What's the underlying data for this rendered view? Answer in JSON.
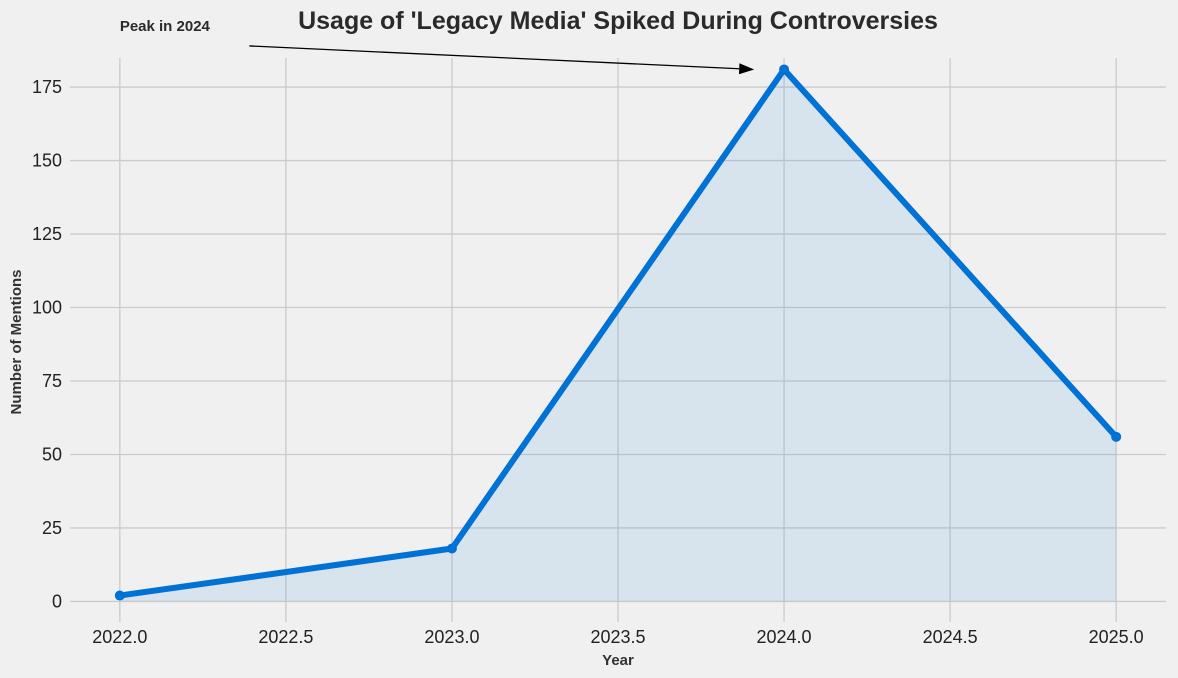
{
  "chart_data": {
    "type": "area",
    "title": "Usage of 'Legacy Media' Spiked During Controversies",
    "xlabel": "Year",
    "ylabel": "Number of Mentions",
    "xlim": [
      2021.85,
      2025.15
    ],
    "ylim": [
      -7,
      190
    ],
    "xticks": [
      2022.0,
      2022.5,
      2023.0,
      2023.5,
      2024.0,
      2024.5,
      2025.0
    ],
    "xtick_labels": [
      "2022.0",
      "2022.5",
      "2023.0",
      "2023.5",
      "2024.0",
      "2024.5",
      "2025.0"
    ],
    "yticks": [
      0,
      25,
      50,
      75,
      100,
      125,
      150,
      175
    ],
    "ytick_labels": [
      "0",
      "25",
      "50",
      "75",
      "100",
      "125",
      "150",
      "175"
    ],
    "grid": true,
    "series": [
      {
        "x": [
          2022,
          2023,
          2024,
          2025
        ],
        "y": [
          2,
          18,
          181,
          56
        ],
        "color": "#0072d6",
        "fill_color": "#0072d6",
        "fill_opacity": 0.1
      }
    ],
    "annotations": [
      {
        "text": "Peak in 2024",
        "text_x": 2022.0,
        "text_y": 194,
        "arrow_from_x": 2022.39,
        "arrow_from_y": 189,
        "arrow_to_x": 2023.91,
        "arrow_to_y": 181
      }
    ],
    "background": "#f0f0f0",
    "grid_color": "#cbcbcb"
  }
}
